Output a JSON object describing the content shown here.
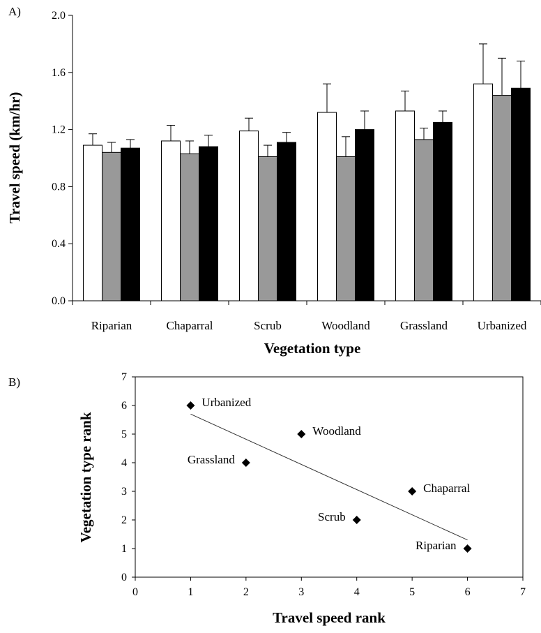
{
  "chart_data": [
    {
      "panel": "A)",
      "type": "bar",
      "ylabel": "Travel speed (km/hr)",
      "xlabel": "Vegetation type",
      "categories": [
        "Riparian",
        "Chaparral",
        "Scrub",
        "Woodland",
        "Grassland",
        "Urbanized"
      ],
      "ylim": [
        0,
        2.0
      ],
      "yticks": [
        "0.0",
        "0.4",
        "0.8",
        "1.2",
        "1.6",
        "2.0"
      ],
      "series": [
        {
          "color": "#ffffff",
          "values": [
            1.09,
            1.12,
            1.19,
            1.32,
            1.33,
            1.52
          ],
          "errors": [
            0.08,
            0.11,
            0.09,
            0.2,
            0.14,
            0.28
          ]
        },
        {
          "color": "#999999",
          "values": [
            1.04,
            1.03,
            1.01,
            1.01,
            1.13,
            1.44
          ],
          "errors": [
            0.07,
            0.09,
            0.08,
            0.14,
            0.08,
            0.26
          ]
        },
        {
          "color": "#000000",
          "values": [
            1.07,
            1.08,
            1.11,
            1.2,
            1.25,
            1.49
          ],
          "errors": [
            0.06,
            0.08,
            0.07,
            0.13,
            0.08,
            0.19
          ]
        }
      ],
      "grid": false
    },
    {
      "panel": "B)",
      "type": "scatter",
      "xlabel": "Travel speed rank",
      "ylabel": "Vegetation type rank",
      "xlim": [
        0,
        7
      ],
      "ylim": [
        0,
        7
      ],
      "xticks": [
        "0",
        "1",
        "2",
        "3",
        "4",
        "5",
        "6",
        "7"
      ],
      "yticks": [
        "0",
        "1",
        "2",
        "3",
        "4",
        "5",
        "6",
        "7"
      ],
      "points": [
        {
          "label": "Urbanized",
          "x": 1,
          "y": 6,
          "label_side": "right"
        },
        {
          "label": "Grassland",
          "x": 2,
          "y": 4,
          "label_side": "left"
        },
        {
          "label": "Woodland",
          "x": 3,
          "y": 5,
          "label_side": "right"
        },
        {
          "label": "Scrub",
          "x": 4,
          "y": 2,
          "label_side": "left"
        },
        {
          "label": "Chaparral",
          "x": 5,
          "y": 3,
          "label_side": "right"
        },
        {
          "label": "Riparian",
          "x": 6,
          "y": 1,
          "label_side": "left"
        }
      ],
      "trendline": {
        "x": [
          1,
          6
        ],
        "y": [
          5.7,
          1.3
        ]
      },
      "grid": false
    }
  ]
}
